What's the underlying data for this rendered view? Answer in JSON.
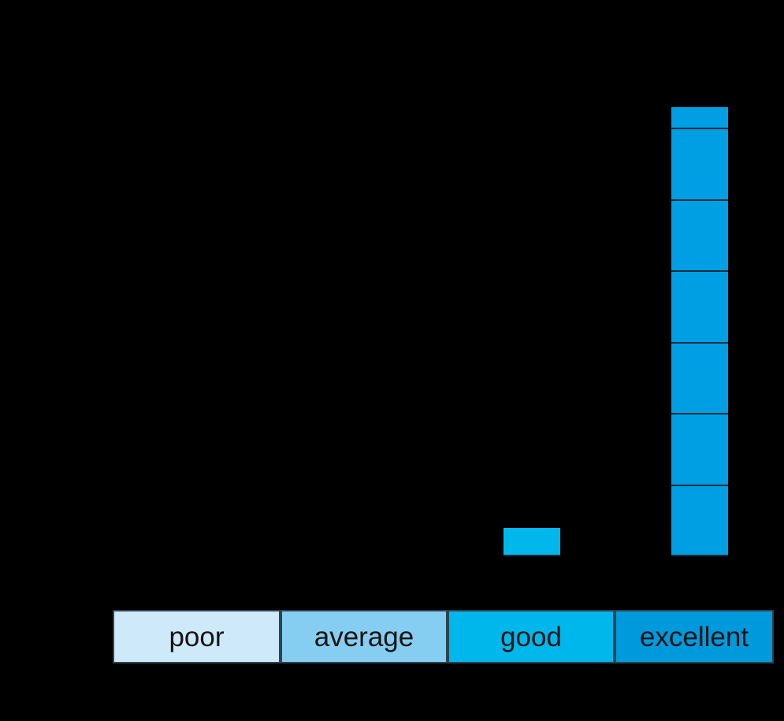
{
  "page": {
    "background_color": "#000000"
  },
  "chart_data": {
    "type": "bar",
    "title": "",
    "xlabel": "",
    "ylabel": "",
    "categories": [
      "poor",
      "average",
      "good",
      "excellent"
    ],
    "values": [
      0,
      0,
      0.4,
      6.3
    ],
    "units": "gridline-intervals",
    "ylim": [
      0,
      6.5
    ],
    "grid": true,
    "legend_position": "none",
    "bar_colors": {
      "good": "#00B7EB",
      "excellent": "#009FE3"
    },
    "gridline_color_over_bars": "#102C3C",
    "axis_strip": {
      "cells": [
        {
          "label": "poor",
          "color": "#CEE9F9"
        },
        {
          "label": "average",
          "color": "#86CEF1"
        },
        {
          "label": "good",
          "color": "#00B7EB"
        },
        {
          "label": "excellent",
          "color": "#0099DC"
        }
      ],
      "border_color": "#2C4350",
      "text_color": "#141414"
    }
  }
}
